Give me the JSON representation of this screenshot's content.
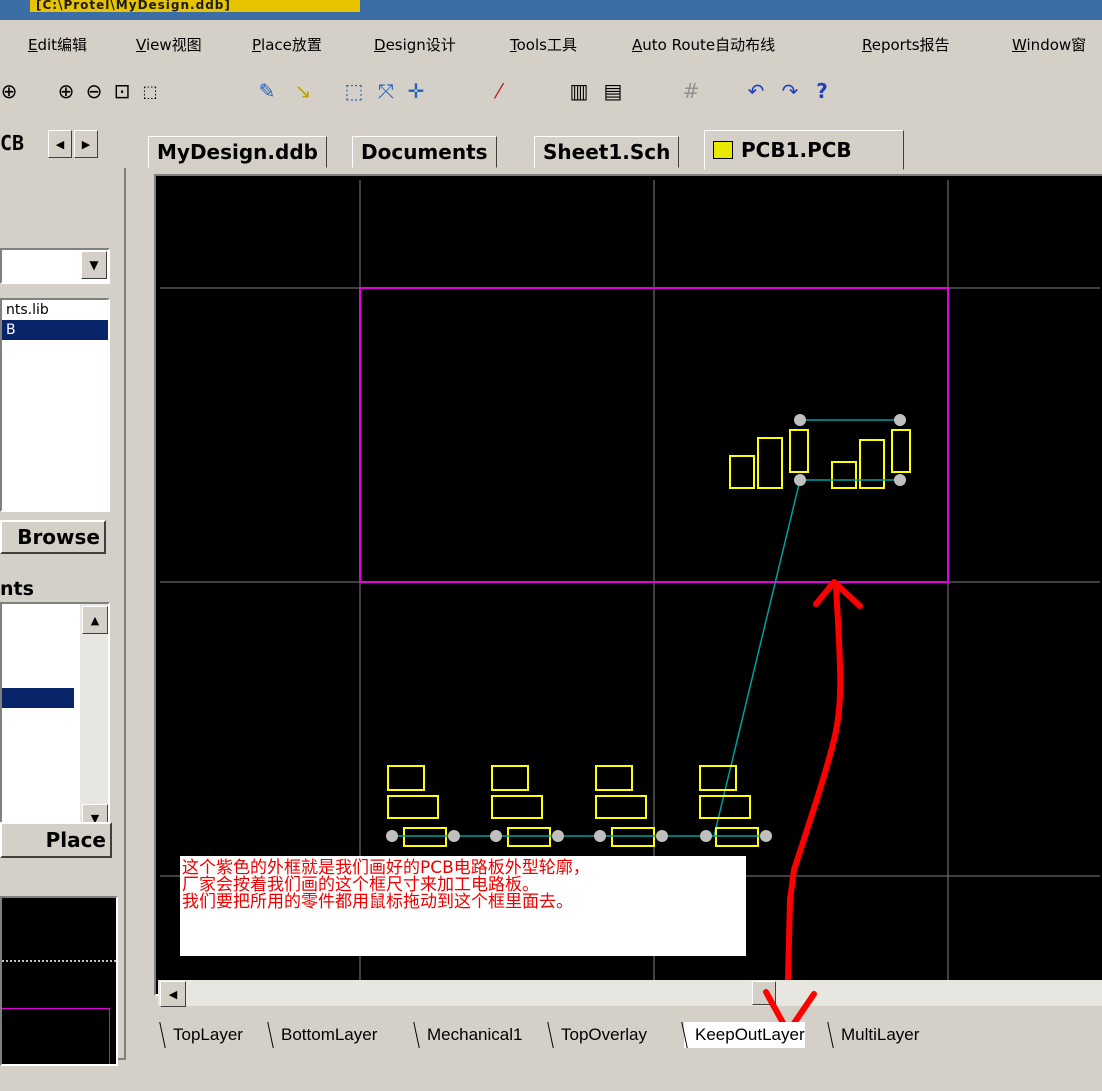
{
  "titlebar": {
    "title": "[C:\\Protel\\MyDesign.ddb]"
  },
  "menu": [
    "Edit编辑",
    "View视图",
    "Place放置",
    "Design设计",
    "Tools工具",
    "Auto Route自动布线",
    "Reports报告",
    "Window窗"
  ],
  "toolbar": {
    "icons": [
      "fit-icon",
      "zoom-in-icon",
      "zoom-out-icon",
      "zoom-area-icon",
      "zoom-select-icon",
      "wire-icon",
      "route-icon",
      "select-icon",
      "deselect-icon",
      "move-icon",
      "wand-icon",
      "library-icon",
      "browse-icon",
      "grid-icon",
      "undo-icon",
      "redo-icon",
      "help-icon"
    ]
  },
  "left_panel": {
    "tab_label": "CB",
    "libraries": [
      "nts.lib",
      "B"
    ],
    "browse_label": "Browse",
    "components_label": "nts",
    "place_label": "Place"
  },
  "document_tabs": [
    {
      "label": "MyDesign.ddb",
      "active": false
    },
    {
      "label": "Documents",
      "active": false
    },
    {
      "label": "Sheet1.Sch",
      "active": false
    },
    {
      "label": "PCB1.PCB",
      "active": true
    }
  ],
  "annotation": {
    "lines": [
      "这个紫色的外框就是我们画好的PCB电路板外型轮廓，",
      "厂家会按着我们画的这个框尺寸来加工电路板。",
      "我们要把所用的零件都用鼠标拖动到这个框里面去。"
    ],
    "color": "#ff0000"
  },
  "layers": [
    {
      "label": "TopLayer",
      "active": false
    },
    {
      "label": "BottomLayer",
      "active": false
    },
    {
      "label": "Mechanical1",
      "active": false
    },
    {
      "label": "TopOverlay",
      "active": false
    },
    {
      "label": "KeepOutLayer",
      "active": true
    },
    {
      "label": "MultiLayer",
      "active": false
    }
  ],
  "colors": {
    "board_outline": "#e000e0",
    "component": "#ffff00",
    "ratsnest": "#00a0a0",
    "grid": "#808080",
    "pad": "#c0c0c0",
    "arrow": "#ff0000"
  }
}
